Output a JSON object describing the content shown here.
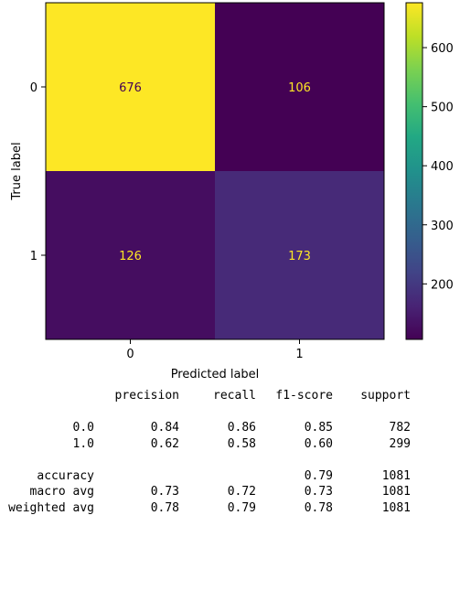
{
  "chart_data": {
    "type": "heatmap",
    "xlabel": "Predicted label",
    "ylabel": "True label",
    "x_categories": [
      "0",
      "1"
    ],
    "y_categories": [
      "0",
      "1"
    ],
    "matrix": [
      [
        676,
        106
      ],
      [
        126,
        173
      ]
    ],
    "colormap": "viridis",
    "colorbar": {
      "min": 106,
      "max": 676,
      "ticks": [
        200,
        300,
        400,
        500,
        600
      ]
    },
    "text_colors": {
      "on_bright": "#440154",
      "on_dark": "#fde725"
    }
  },
  "report": {
    "headers": [
      "precision",
      "recall",
      "f1-score",
      "support"
    ],
    "class_rows": [
      {
        "label": "0.0",
        "precision": "0.84",
        "recall": "0.86",
        "f1": "0.85",
        "support": "782"
      },
      {
        "label": "1.0",
        "precision": "0.62",
        "recall": "0.58",
        "f1": "0.60",
        "support": "299"
      }
    ],
    "summary_rows": [
      {
        "label": "accuracy",
        "precision": "",
        "recall": "",
        "f1": "0.79",
        "support": "1081"
      },
      {
        "label": "macro avg",
        "precision": "0.73",
        "recall": "0.72",
        "f1": "0.73",
        "support": "1081"
      },
      {
        "label": "weighted avg",
        "precision": "0.78",
        "recall": "0.79",
        "f1": "0.78",
        "support": "1081"
      }
    ]
  }
}
